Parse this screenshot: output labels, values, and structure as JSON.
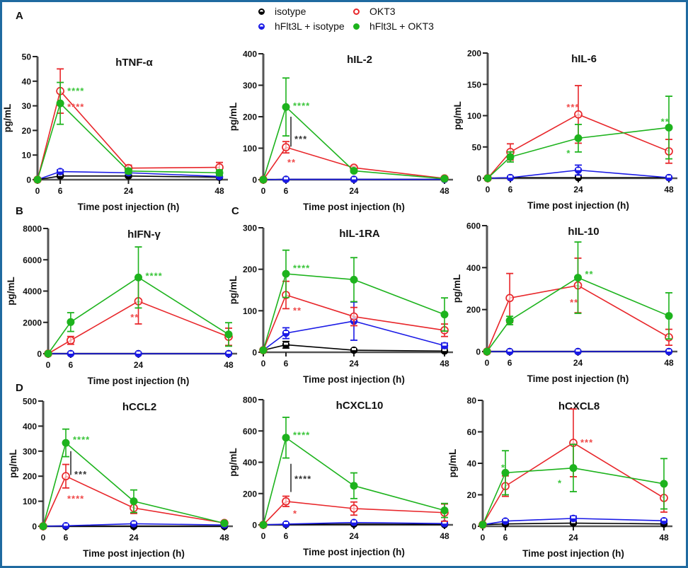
{
  "legend": {
    "items": [
      {
        "name": "isotype",
        "color": "#000000",
        "marker": "half-open-circle"
      },
      {
        "name": "OKT3",
        "color": "#e8262a",
        "marker": "open-circle"
      },
      {
        "name": "hFlt3L + isotype",
        "color": "#1a1ae6",
        "marker": "half-open-circle"
      },
      {
        "name": "hFlt3L + OKT3",
        "color": "#1db31d",
        "marker": "filled-circle"
      }
    ]
  },
  "panel_labels": [
    "A",
    "B",
    "C",
    "D"
  ],
  "chart_data": [
    {
      "type": "line",
      "title": "hTNF-α",
      "xlabel": "Time post injection (h)",
      "ylabel": "pg/mL",
      "x": [
        0,
        6,
        24,
        48
      ],
      "xticks": [
        "0",
        "6",
        "24",
        "48"
      ],
      "ylim": [
        0,
        50
      ],
      "yticks": [
        0,
        10,
        20,
        30,
        40,
        50
      ],
      "series": [
        {
          "name": "isotype",
          "values": [
            0,
            1.5,
            1.5,
            1
          ],
          "err": [
            0,
            0.5,
            0.5,
            0.3
          ]
        },
        {
          "name": "hFlt3L + isotype",
          "values": [
            0,
            3.3,
            2.8,
            1.3
          ],
          "err": [
            0,
            0.7,
            0.5,
            0.5
          ]
        },
        {
          "name": "OKT3",
          "values": [
            0,
            36,
            4.7,
            5
          ],
          "err": [
            0,
            9,
            1.2,
            2
          ]
        },
        {
          "name": "hFlt3L + OKT3",
          "values": [
            0,
            31,
            3.5,
            2.8
          ],
          "err": [
            0,
            8.5,
            1,
            1.2
          ]
        }
      ],
      "annotations": [
        {
          "text": "****",
          "color": "green",
          "x": 6,
          "y": 36.5
        },
        {
          "text": "****",
          "color": "red",
          "x": 6,
          "y": 30
        }
      ]
    },
    {
      "type": "line",
      "title": "hIL-2",
      "xlabel": "Time post injection (h)",
      "ylabel": "pg/mL",
      "x": [
        0,
        6,
        24,
        48
      ],
      "xticks": [
        "0",
        "6",
        "24",
        "48"
      ],
      "ylim": [
        0,
        400
      ],
      "yticks": [
        0,
        100,
        200,
        300,
        400
      ],
      "series": [
        {
          "name": "isotype",
          "values": [
            0,
            1,
            1,
            1
          ],
          "err": [
            0,
            0,
            0,
            0
          ]
        },
        {
          "name": "hFlt3L + isotype",
          "values": [
            0,
            1,
            1,
            1
          ],
          "err": [
            0,
            0,
            0,
            0
          ]
        },
        {
          "name": "OKT3",
          "values": [
            0,
            103,
            38,
            4
          ],
          "err": [
            0,
            18,
            5,
            2
          ]
        },
        {
          "name": "hFlt3L + OKT3",
          "values": [
            0,
            231,
            28,
            3
          ],
          "err": [
            0,
            92,
            5,
            2
          ]
        }
      ],
      "annotations": [
        {
          "text": "****",
          "color": "green",
          "x": 6,
          "y": 238
        },
        {
          "text": "***",
          "color": "black",
          "x": 6,
          "y": 133,
          "bracket": [
            105,
            200
          ]
        },
        {
          "text": "**",
          "color": "red",
          "x": 6,
          "y": 58
        }
      ]
    },
    {
      "type": "line",
      "title": "hIL-6",
      "xlabel": "Time post injection (h)",
      "ylabel": "pg/mL",
      "x": [
        0,
        6,
        24,
        48
      ],
      "xticks": [
        "0",
        "6",
        "24",
        "48"
      ],
      "ylim": [
        0,
        200
      ],
      "yticks": [
        0,
        50,
        100,
        150,
        200
      ],
      "series": [
        {
          "name": "isotype",
          "values": [
            0,
            1,
            1,
            1
          ],
          "err": [
            0,
            0,
            0,
            0
          ]
        },
        {
          "name": "hFlt3L + isotype",
          "values": [
            0,
            1,
            13,
            1
          ],
          "err": [
            0,
            0,
            8,
            0
          ]
        },
        {
          "name": "OKT3",
          "values": [
            0,
            42,
            102,
            43
          ],
          "err": [
            0,
            13,
            46,
            19
          ]
        },
        {
          "name": "hFlt3L + OKT3",
          "values": [
            0,
            34,
            64,
            81
          ],
          "err": [
            0,
            8,
            22,
            50
          ]
        }
      ],
      "annotations": [
        {
          "text": "***",
          "color": "red",
          "x": 19,
          "y": 115
        },
        {
          "text": "*",
          "color": "green",
          "x": 19,
          "y": 42
        },
        {
          "text": "**",
          "color": "green",
          "x": 44,
          "y": 92
        }
      ]
    },
    {
      "type": "line",
      "title": "hIFN-γ",
      "xlabel": "Time post injection (h)",
      "ylabel": "pg/mL",
      "x": [
        0,
        6,
        24,
        48
      ],
      "xticks": [
        "0",
        "6",
        "24",
        "48"
      ],
      "ylim": [
        0,
        8000
      ],
      "yticks": [
        0,
        2000,
        4000,
        6000,
        8000
      ],
      "series": [
        {
          "name": "isotype",
          "values": [
            0,
            0,
            0,
            0
          ],
          "err": [
            0,
            0,
            0,
            0
          ]
        },
        {
          "name": "hFlt3L + isotype",
          "values": [
            0,
            0,
            0,
            0
          ],
          "err": [
            0,
            0,
            0,
            0
          ]
        },
        {
          "name": "OKT3",
          "values": [
            0,
            850,
            3350,
            1080
          ],
          "err": [
            0,
            250,
            1450,
            550
          ]
        },
        {
          "name": "hFlt3L + OKT3",
          "values": [
            0,
            2020,
            4870,
            1230
          ],
          "err": [
            0,
            600,
            1950,
            750
          ]
        }
      ],
      "annotations": [
        {
          "text": "****",
          "color": "green",
          "x": 24,
          "y": 5050
        },
        {
          "text": "**",
          "color": "red",
          "x": 20,
          "y": 2400
        }
      ]
    },
    {
      "type": "line",
      "title": "hIL-1RA",
      "xlabel": "Time post injection (h)",
      "ylabel": "pg/mL",
      "x": [
        0,
        6,
        24,
        48
      ],
      "xticks": [
        "0",
        "6",
        "24",
        "48"
      ],
      "ylim": [
        0,
        300
      ],
      "yticks": [
        0,
        100,
        200,
        300
      ],
      "series": [
        {
          "name": "isotype",
          "values": [
            5,
            18,
            5,
            3
          ],
          "err": [
            0,
            8,
            1,
            1
          ]
        },
        {
          "name": "hFlt3L + isotype",
          "values": [
            5,
            46,
            75,
            16
          ],
          "err": [
            0,
            13,
            46,
            6
          ]
        },
        {
          "name": "OKT3",
          "values": [
            5,
            138,
            86,
            53
          ],
          "err": [
            0,
            33,
            22,
            15
          ]
        },
        {
          "name": "hFlt3L + OKT3",
          "values": [
            5,
            189,
            175,
            91
          ],
          "err": [
            0,
            57,
            53,
            40
          ]
        }
      ],
      "annotations": [
        {
          "text": "****",
          "color": "green",
          "x": 6,
          "y": 205
        },
        {
          "text": "**",
          "color": "red",
          "x": 6,
          "y": 103
        }
      ]
    },
    {
      "type": "line",
      "title": "hIL-10",
      "xlabel": "Time post injection (h)",
      "ylabel": "pg/mL",
      "x": [
        0,
        6,
        24,
        48
      ],
      "xticks": [
        "0",
        "6",
        "24",
        "48"
      ],
      "ylim": [
        0,
        600
      ],
      "yticks": [
        0,
        200,
        400,
        600
      ],
      "series": [
        {
          "name": "isotype",
          "values": [
            0,
            0,
            0,
            0
          ],
          "err": [
            0,
            0,
            0,
            0
          ]
        },
        {
          "name": "hFlt3L + isotype",
          "values": [
            0,
            0,
            0,
            0
          ],
          "err": [
            0,
            0,
            0,
            0
          ]
        },
        {
          "name": "OKT3",
          "values": [
            0,
            255,
            315,
            68
          ],
          "err": [
            0,
            117,
            130,
            38
          ]
        },
        {
          "name": "hFlt3L + OKT3",
          "values": [
            0,
            148,
            352,
            170
          ],
          "err": [
            0,
            20,
            170,
            110
          ]
        }
      ],
      "annotations": [
        {
          "text": "**",
          "color": "green",
          "x": 24,
          "y": 375
        },
        {
          "text": "**",
          "color": "red",
          "x": 20,
          "y": 240
        }
      ]
    },
    {
      "type": "line",
      "title": "hCCL2",
      "xlabel": "Time post injection (h)",
      "ylabel": "pg/mL",
      "x": [
        0,
        6,
        24,
        48
      ],
      "xticks": [
        "0",
        "6",
        "24",
        "48"
      ],
      "ylim": [
        0,
        500
      ],
      "yticks": [
        0,
        100,
        200,
        300,
        400,
        500
      ],
      "series": [
        {
          "name": "isotype",
          "values": [
            0,
            0,
            0,
            0
          ],
          "err": [
            0,
            0,
            0,
            0
          ]
        },
        {
          "name": "hFlt3L + isotype",
          "values": [
            0,
            2,
            10,
            5
          ],
          "err": [
            0,
            0,
            2,
            1
          ]
        },
        {
          "name": "OKT3",
          "values": [
            0,
            200,
            73,
            13
          ],
          "err": [
            0,
            47,
            22,
            4
          ]
        },
        {
          "name": "hFlt3L + OKT3",
          "values": [
            0,
            333,
            100,
            12
          ],
          "err": [
            0,
            55,
            45,
            4
          ]
        }
      ],
      "annotations": [
        {
          "text": "****",
          "color": "green",
          "x": 6,
          "y": 350
        },
        {
          "text": "***",
          "color": "black",
          "x": 6,
          "y": 212,
          "bracket": [
            205,
            300
          ]
        },
        {
          "text": "****",
          "color": "red",
          "x": 6,
          "y": 115
        }
      ]
    },
    {
      "type": "line",
      "title": "hCXCL10",
      "xlabel": "Time post injection (h)",
      "ylabel": "pg/mL",
      "x": [
        0,
        6,
        24,
        48
      ],
      "xticks": [
        "0",
        "6",
        "24",
        "48"
      ],
      "ylim": [
        0,
        800
      ],
      "yticks": [
        0,
        200,
        400,
        600,
        800
      ],
      "series": [
        {
          "name": "isotype",
          "values": [
            0,
            2,
            5,
            2
          ],
          "err": [
            0,
            0,
            0,
            0
          ]
        },
        {
          "name": "hFlt3L + isotype",
          "values": [
            0,
            5,
            15,
            8
          ],
          "err": [
            0,
            2,
            5,
            3
          ]
        },
        {
          "name": "OKT3",
          "values": [
            0,
            150,
            104,
            78
          ],
          "err": [
            0,
            33,
            42,
            55
          ]
        },
        {
          "name": "hFlt3L + OKT3",
          "values": [
            0,
            557,
            250,
            92
          ],
          "err": [
            0,
            130,
            82,
            45
          ]
        }
      ],
      "annotations": [
        {
          "text": "****",
          "color": "green",
          "x": 6,
          "y": 580
        },
        {
          "text": "****",
          "color": "black",
          "x": 6,
          "y": 300,
          "bracket": [
            210,
            390
          ]
        },
        {
          "text": "*",
          "color": "red",
          "x": 6,
          "y": 80
        }
      ]
    },
    {
      "type": "line",
      "title": "hCXCL8",
      "xlabel": "Time post injection (h)",
      "ylabel": "pg/mL",
      "x": [
        0,
        6,
        24,
        48
      ],
      "xticks": [
        "0",
        "6",
        "24",
        "48"
      ],
      "ylim": [
        0,
        80
      ],
      "yticks": [
        0,
        20,
        40,
        60,
        80
      ],
      "series": [
        {
          "name": "isotype",
          "values": [
            1,
            1.5,
            2,
            1.5
          ],
          "err": [
            0,
            0.5,
            0.5,
            0.5
          ]
        },
        {
          "name": "hFlt3L + isotype",
          "values": [
            1,
            3.3,
            5,
            3.5
          ],
          "err": [
            0,
            0.8,
            1.5,
            0.8
          ]
        },
        {
          "name": "OKT3",
          "values": [
            1,
            25.5,
            53,
            18
          ],
          "err": [
            0,
            6.5,
            21.5,
            9
          ]
        },
        {
          "name": "hFlt3L + OKT3",
          "values": [
            1,
            34,
            37,
            27
          ],
          "err": [
            0,
            14,
            15,
            16
          ]
        }
      ],
      "annotations": [
        {
          "text": "*",
          "color": "green",
          "x": 3,
          "y": 38
        },
        {
          "text": "*",
          "color": "green",
          "x": 18,
          "y": 28
        },
        {
          "text": "***",
          "color": "red",
          "x": 24,
          "y": 54
        }
      ]
    }
  ]
}
